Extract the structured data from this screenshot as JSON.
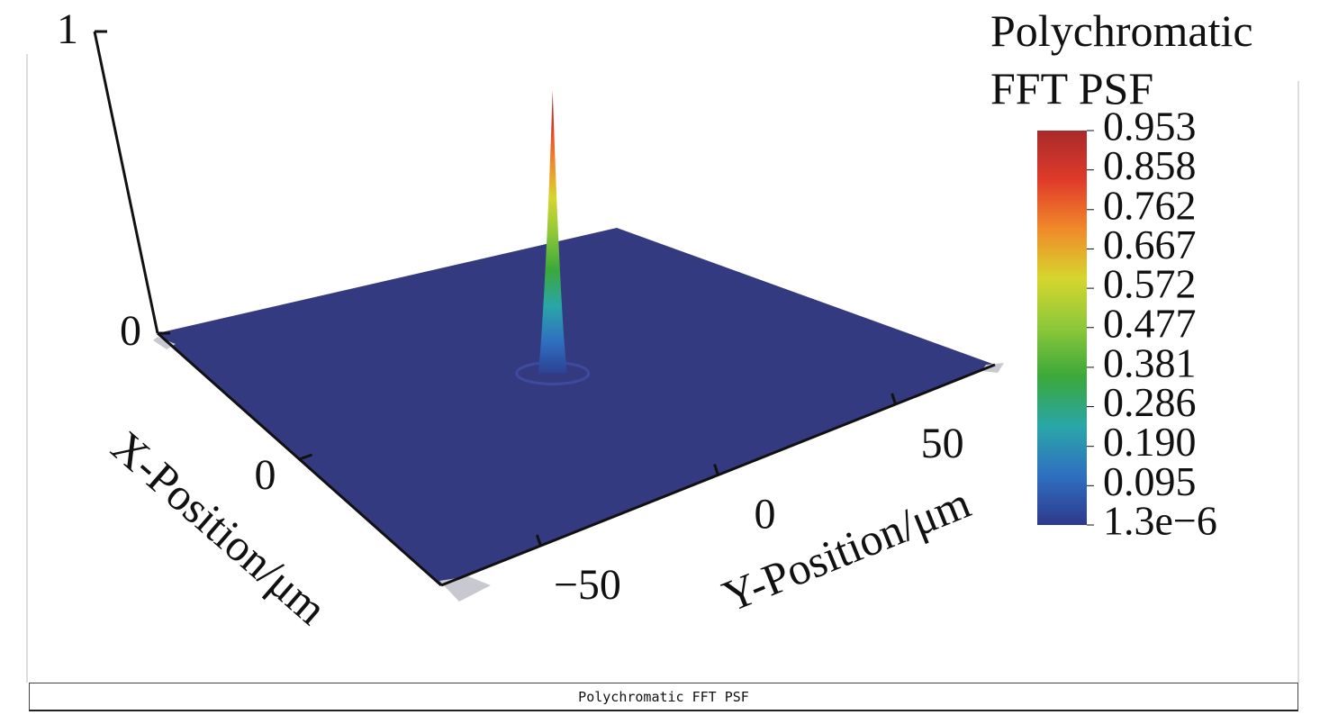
{
  "chart_data": {
    "type": "surface3d",
    "title": "Polychromatic FFT PSF",
    "caption": "Polychromatic FFT PSF",
    "xlabel": "X-Position/μm",
    "ylabel": "Y-Position/μm",
    "xlim": [
      -78,
      78
    ],
    "xticks": [
      0
    ],
    "ylim": [
      -78,
      78
    ],
    "yticks": [
      {
        "value": -50,
        "label": "−50"
      },
      0,
      50
    ],
    "zlim": [
      0,
      1
    ],
    "zticks": [
      0,
      1
    ],
    "surface_color": "#343a80",
    "colormap": [
      "#2e3a8c",
      "#2f6fc0",
      "#2aa6a8",
      "#3aa83a",
      "#8cc83a",
      "#d6d62e",
      "#f08a2a",
      "#e03a2a",
      "#a82a2a"
    ],
    "colorbar_ticks": [
      0.953,
      0.858,
      0.762,
      0.667,
      0.572,
      0.477,
      0.381,
      0.286,
      {
        "value": 0.19,
        "label": "0.190"
      },
      0.095,
      {
        "value": 1.3e-06,
        "label": "1.3e−6"
      }
    ]
  }
}
